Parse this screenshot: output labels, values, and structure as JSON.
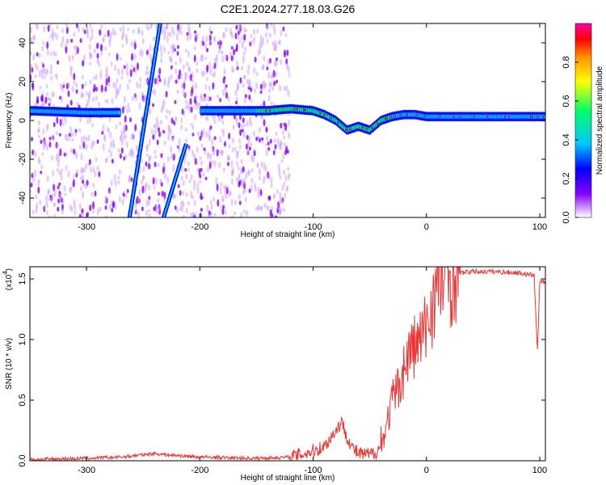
{
  "title": "C2E1.2024.277.18.03.G26",
  "colors": {
    "snr_line": "#ee3333",
    "colormap": [
      "#ffffff",
      "#8800ff",
      "#0000ff",
      "#00c8ff",
      "#00ff66",
      "#ffff00",
      "#ff9900",
      "#ff0000",
      "#ff00aa"
    ]
  },
  "chart_data": [
    {
      "type": "heatmap",
      "xlabel": "Height of straight line (km)",
      "ylabel": "Frequency (Hz)",
      "xlim": [
        -350,
        105
      ],
      "ylim": [
        -50,
        50
      ],
      "xticks": [
        "-300",
        "-200",
        "-100",
        "0",
        "100"
      ],
      "yticks": [
        "-40",
        "-20",
        "0",
        "20",
        "40"
      ],
      "colorbar": {
        "label": "Normalized spectral amplitude",
        "range": [
          0,
          1
        ],
        "ticks": [
          "0.0",
          "0.2",
          "0.4",
          "0.6",
          "0.8"
        ]
      },
      "ridge": {
        "x": [
          -350,
          -300,
          -270,
          -200,
          -160,
          -140,
          -120,
          -100,
          -90,
          -80,
          -70,
          -60,
          -50,
          -40,
          -30,
          -20,
          -10,
          0,
          20,
          50,
          105
        ],
        "freq": [
          5,
          4,
          4,
          5,
          5,
          5,
          6,
          5,
          3,
          0,
          -5,
          -3,
          -5,
          0,
          2,
          3,
          3,
          2,
          2,
          2,
          2
        ]
      },
      "streaks": [
        {
          "x": [
            -262,
            -235
          ],
          "freq": [
            -50,
            50
          ]
        },
        {
          "x": [
            -232,
            -212
          ],
          "freq": [
            -50,
            -12
          ]
        }
      ]
    },
    {
      "type": "line",
      "xlabel": "Height of straight line (km)",
      "ylabel": "SNR (10 * v/v)",
      "yscale_label": "(x10",
      "yscale_exp": "4",
      "xlim": [
        -350,
        105
      ],
      "ylim": [
        0,
        1.6
      ],
      "xticks": [
        "-300",
        "-200",
        "-100",
        "0",
        "100"
      ],
      "yticks": [
        "0.0",
        "0.5",
        "1.0",
        "1.5"
      ],
      "series": [
        {
          "x": [
            -350,
            -300,
            -270,
            -250,
            -240,
            -230,
            -200,
            -150,
            -120,
            -100,
            -90,
            -80,
            -75,
            -70,
            -65,
            -60,
            -55,
            -50,
            -45,
            -40,
            -35,
            -30,
            -25,
            -20,
            -15,
            -10,
            -5,
            0,
            5,
            10,
            20,
            30,
            40,
            60,
            80,
            95,
            98,
            100,
            105
          ],
          "y": [
            0.01,
            0.02,
            0.03,
            0.05,
            0.06,
            0.05,
            0.03,
            0.02,
            0.03,
            0.08,
            0.12,
            0.25,
            0.32,
            0.2,
            0.1,
            0.06,
            0.05,
            0.05,
            0.07,
            0.12,
            0.3,
            0.5,
            0.6,
            0.75,
            0.9,
            0.95,
            1.0,
            1.1,
            1.3,
            1.45,
            1.52,
            1.55,
            1.56,
            1.56,
            1.55,
            1.53,
            0.9,
            1.48,
            1.47
          ]
        }
      ]
    }
  ]
}
